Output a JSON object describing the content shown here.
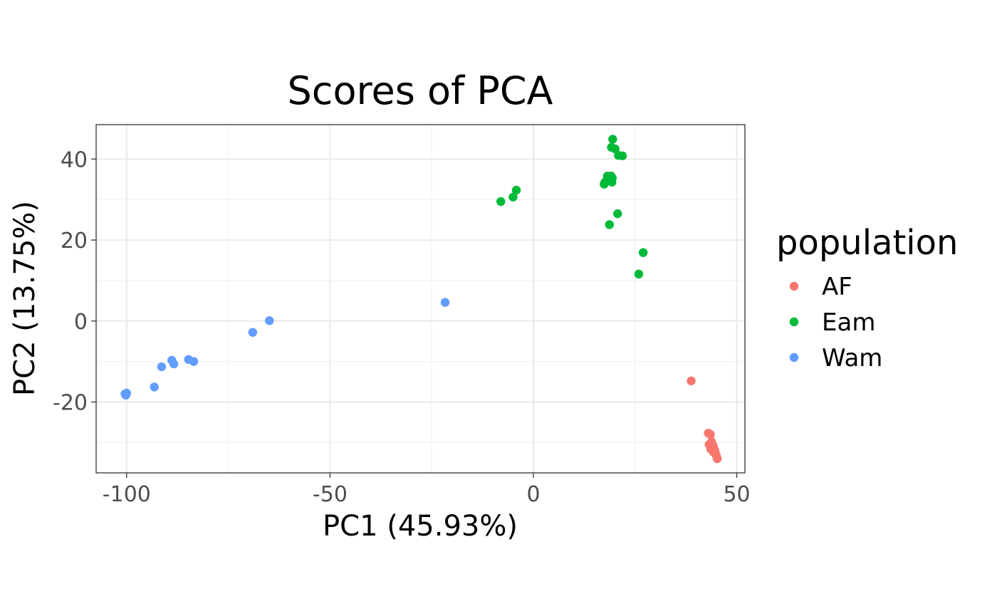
{
  "chart_data": {
    "type": "scatter",
    "title": "Scores of PCA",
    "xlabel": "PC1 (45.93%)",
    "ylabel": "PC2 (13.75%)",
    "xlim": [
      -107.5,
      52
    ],
    "ylim": [
      -37.5,
      48.5
    ],
    "x_ticks": [
      -100,
      -50,
      0,
      50
    ],
    "y_ticks": [
      -20,
      0,
      20,
      40
    ],
    "x_tick_labels": [
      "-100",
      "-50",
      "0",
      "50"
    ],
    "y_tick_labels": [
      "-20",
      "0",
      "20",
      "40"
    ],
    "grid": true,
    "legend": {
      "title": "population",
      "position": "right"
    },
    "series": [
      {
        "name": "AF",
        "color": "#F8766D",
        "points": [
          [
            38.8,
            -14.8
          ],
          [
            43.0,
            -27.7
          ],
          [
            43.5,
            -28.0
          ],
          [
            43.2,
            -30.5
          ],
          [
            43.8,
            -29.8
          ],
          [
            44.2,
            -30.8
          ],
          [
            43.6,
            -31.6
          ],
          [
            44.6,
            -31.9
          ],
          [
            44.3,
            -32.4
          ],
          [
            44.8,
            -32.7
          ],
          [
            45.0,
            -33.3
          ],
          [
            45.2,
            -34.0
          ]
        ]
      },
      {
        "name": "Eam",
        "color": "#00BA38",
        "points": [
          [
            -8.0,
            29.5
          ],
          [
            -5.0,
            30.6
          ],
          [
            -4.2,
            32.3
          ],
          [
            19.5,
            44.9
          ],
          [
            19.2,
            42.9
          ],
          [
            20.1,
            42.5
          ],
          [
            20.9,
            40.9
          ],
          [
            21.9,
            40.8
          ],
          [
            18.2,
            35.8
          ],
          [
            19.1,
            35.8
          ],
          [
            19.4,
            35.3
          ],
          [
            17.6,
            34.3
          ],
          [
            18.5,
            34.6
          ],
          [
            19.3,
            34.3
          ],
          [
            17.4,
            33.8
          ],
          [
            20.7,
            26.5
          ],
          [
            18.7,
            23.8
          ],
          [
            27.0,
            16.9
          ],
          [
            25.9,
            11.6
          ]
        ]
      },
      {
        "name": "Wam",
        "color": "#619CFF",
        "points": [
          [
            -21.7,
            4.6
          ],
          [
            -64.9,
            0.1
          ],
          [
            -69.0,
            -2.8
          ],
          [
            -88.9,
            -9.7
          ],
          [
            -88.4,
            -10.6
          ],
          [
            -84.8,
            -9.5
          ],
          [
            -83.5,
            -10.0
          ],
          [
            -91.4,
            -11.3
          ],
          [
            -93.2,
            -16.3
          ],
          [
            -100.4,
            -18.0
          ],
          [
            -100.0,
            -17.8
          ],
          [
            -100.2,
            -18.3
          ]
        ]
      }
    ]
  }
}
